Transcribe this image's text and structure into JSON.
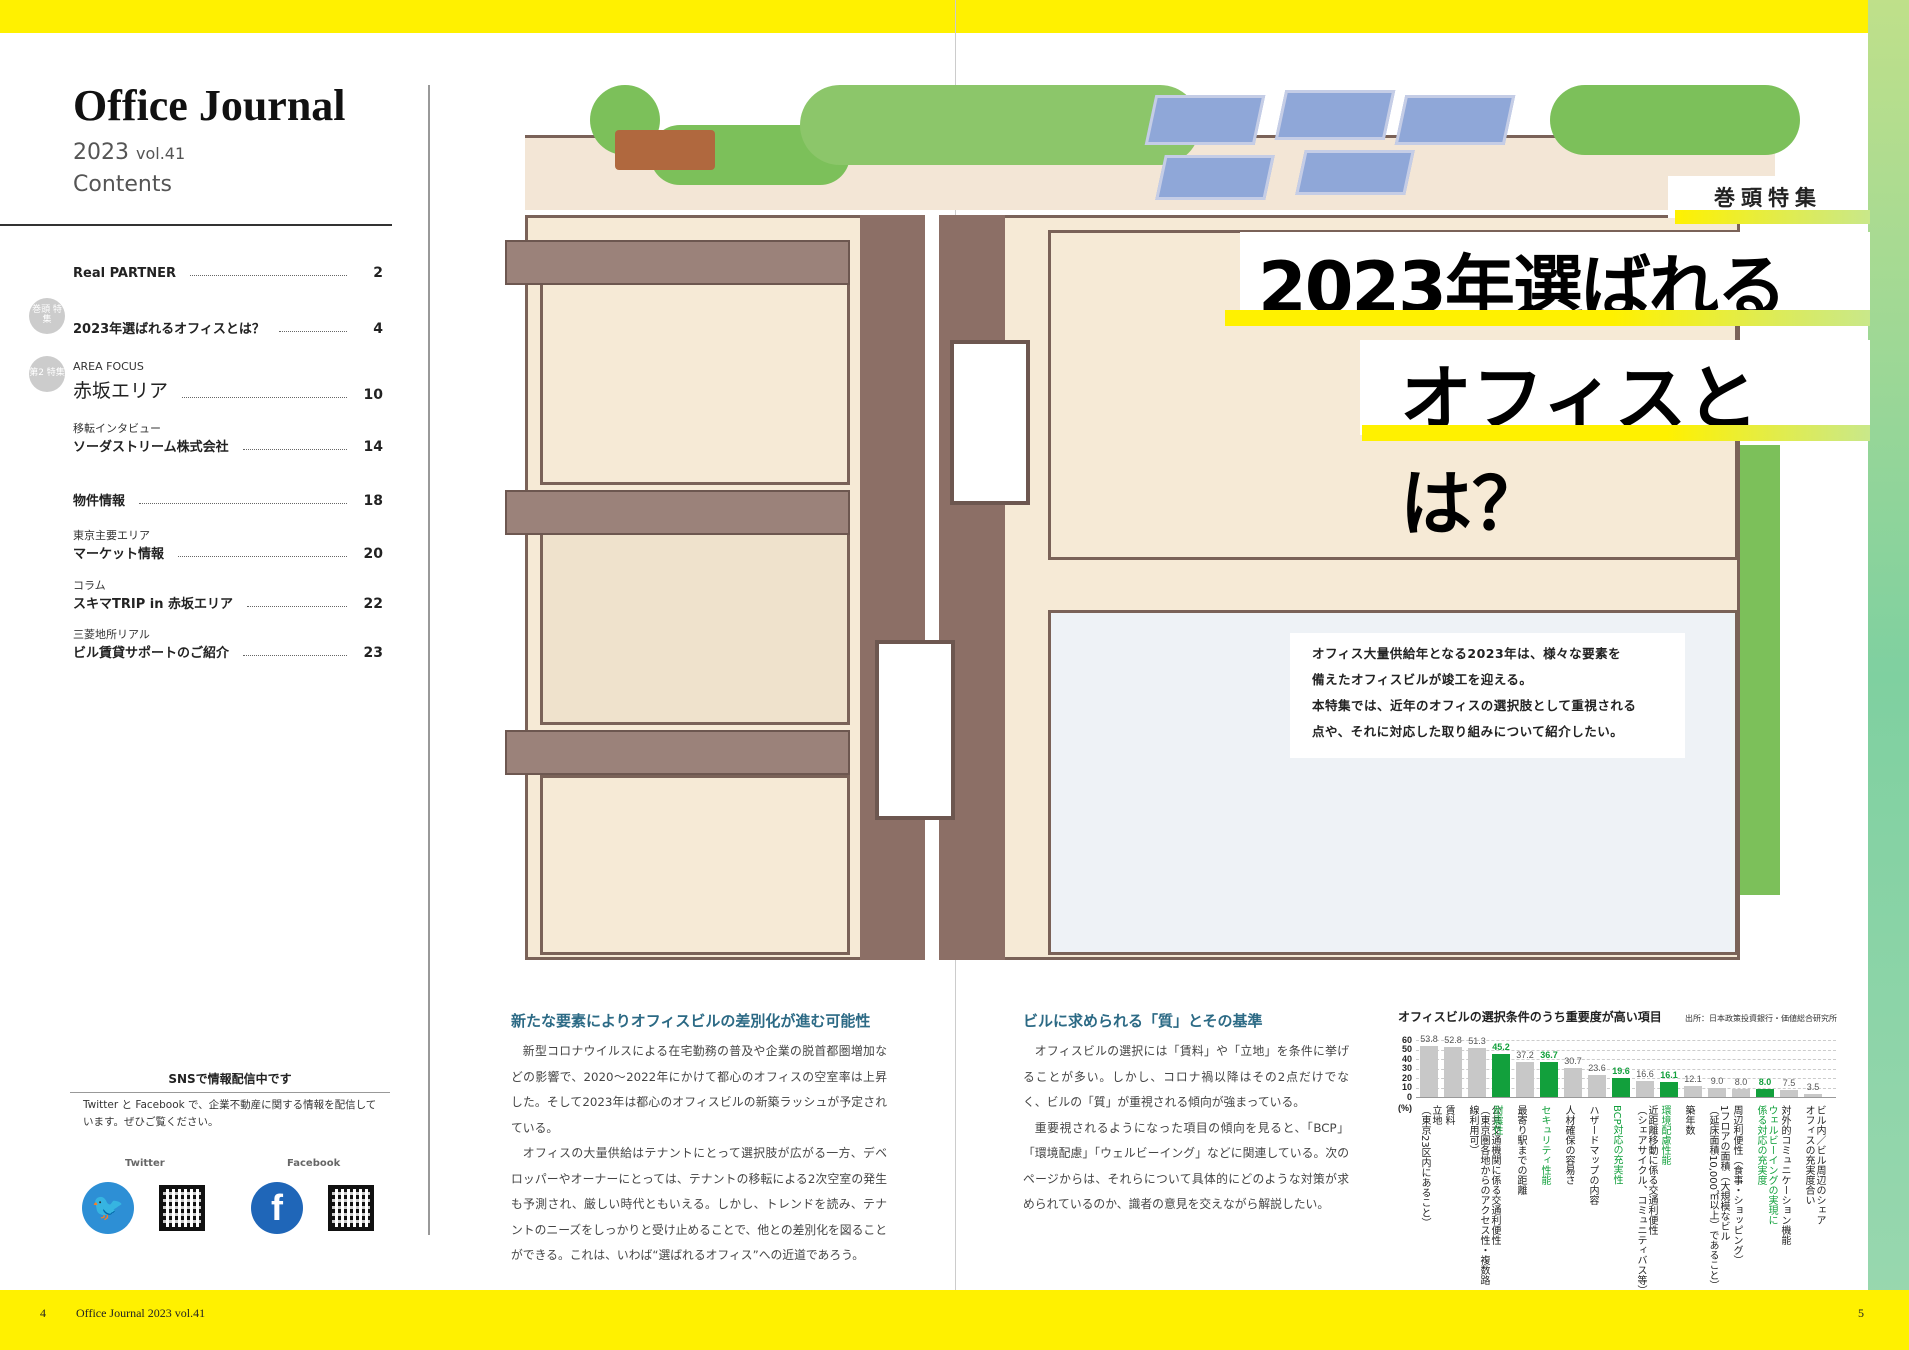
{
  "masthead": {
    "title": "Office Journal",
    "year": "2023",
    "vol": "vol.41",
    "contents": "Contents"
  },
  "toc": [
    {
      "label": "Real PARTNER",
      "page": "2"
    },
    {
      "badge": "巻頭 特集",
      "label": "2023年選ばれるオフィスとは？",
      "page": "4"
    },
    {
      "badge": "第2 特集",
      "sub": "AREA FOCUS",
      "label": "赤坂エリア",
      "page": "10"
    },
    {
      "sub": "移転インタビュー",
      "label": "ソーダストリーム株式会社",
      "page": "14"
    },
    {
      "label": "物件情報",
      "page": "18"
    },
    {
      "sub": "東京主要エリア",
      "label": "マーケット情報",
      "page": "20"
    },
    {
      "sub": "コラム",
      "label": "スキマTRIP in 赤坂エリア",
      "page": "22"
    },
    {
      "sub": "三菱地所リアル",
      "label": "ビル賃貸サポートのご紹介",
      "page": "23"
    }
  ],
  "sns": {
    "heading": "SNSで情報配信中です",
    "text": "Twitter と Facebook で、企業不動産に関する情報を配信しています。ぜひご覧ください。",
    "twitter": "Twitter",
    "facebook": "Facebook",
    "twitter_color": "#2d8fd5",
    "facebook_color": "#1f66b8"
  },
  "footer": {
    "left_page": "4",
    "left_title": "Office Journal  2023 vol.41",
    "right_page": "5"
  },
  "feature": {
    "kicker": "巻頭特集",
    "headline1": "2023年選ばれる",
    "headline2": "オフィスとは？",
    "lead": [
      "オフィス大量供給年となる2023年は、様々な要素を",
      "備えたオフィスビルが竣工を迎える。",
      "本特集では、近年のオフィスの選択肢として重視される",
      "点や、それに対応した取り組みについて紹介したい。"
    ]
  },
  "col1": {
    "heading": "新たな要素によりオフィスビルの差別化が進む可能性",
    "paras": [
      "新型コロナウイルスによる在宅勤務の普及や企業の脱首都圏増加などの影響で、2020～2022年にかけて都心のオフィスの空室率は上昇した。そして2023年は都心のオフィスビルの新築ラッシュが予定されている。",
      "オフィスの大量供給はテナントにとって選択肢が広がる一方、デベロッパーやオーナーにとっては、テナントの移転による2次空室の発生も予測され、厳しい時代ともいえる。しかし、トレンドを読み、テナントのニーズをしっかりと受け止めることで、他との差別化を図ることができる。これは、いわば“選ばれるオフィス”への近道であろう。"
    ]
  },
  "col2": {
    "heading": "ビルに求められる「質」とその基準",
    "paras": [
      "オフィスビルの選択には「賃料」や「立地」を条件に挙げることが多い。しかし、コロナ禍以降はその2点だけでなく、ビルの「質」が重視される傾向が強まっている。",
      "重要視されるようになった項目の傾向を見ると、「BCP」「環境配慮」「ウェルビーイング」などに関連している。次のページからは、それらについて具体的にどのような対策が求められているのか、識者の意見を交えながら解説したい。"
    ]
  },
  "chart_data": {
    "type": "bar",
    "title": "オフィスビルの選択条件のうち重要度が高い項目",
    "source": "出所：日本政策投資銀行・価値総合研究所",
    "ylabel": "(%)",
    "ylim": [
      0,
      60
    ],
    "yticks": [
      0,
      10,
      20,
      30,
      40,
      50,
      60
    ],
    "grid": true,
    "colors": {
      "normal": "#c8c8c8",
      "highlight": "#12a03c"
    },
    "categories": [
      "立地\n（東京23区内にあること）",
      "賃料",
      "公共交通機関に係る交通利便性\n（東京圏各地からのアクセス性・複数路線利用可）",
      "耐震性",
      "最寄り駅までの距離",
      "セキュリティ性能",
      "人材確保の容易さ",
      "ハザードマップの内容",
      "BCP対応の充実性",
      "近距離移動に係る交通利便性\n（シェアサイクル、コミュニティバス等）",
      "環境配慮性能",
      "築年数",
      "1フロアの面積（大規模なビル\n（延床面積10,000㎡以上）であること）",
      "周辺利便性（食事・ショッピング）",
      "ウェルビーイングの実現に\n係る対応の充実度",
      "対外的コミュニケーション機能",
      "ビル内／ビル周辺のシェア\nオフィスの充実度合い"
    ],
    "values": [
      53.8,
      52.8,
      51.3,
      45.2,
      37.2,
      36.7,
      30.7,
      23.6,
      19.6,
      16.6,
      16.1,
      12.1,
      9.0,
      8.0,
      8.0,
      7.5,
      3.5
    ],
    "value_labels": [
      "53.8",
      "52.8",
      "51.3",
      "45.2",
      "37.2",
      "36.7",
      "30.7",
      "23.6",
      "19.6",
      "16.6",
      "16.1",
      "12.1",
      "9.0",
      "8.0",
      "8.0",
      "7.5",
      "3.5"
    ],
    "highlight": [
      false,
      false,
      false,
      true,
      false,
      true,
      false,
      false,
      true,
      false,
      true,
      false,
      false,
      false,
      true,
      false,
      false
    ]
  }
}
